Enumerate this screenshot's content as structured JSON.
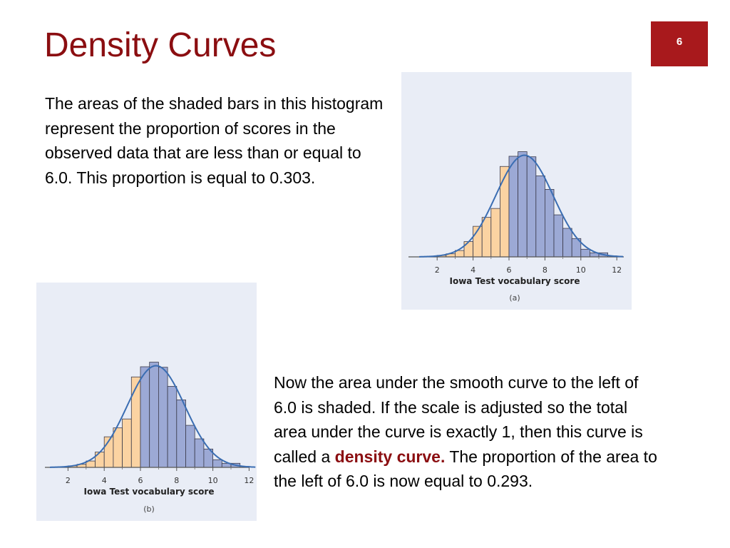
{
  "slide": {
    "title": "Density Curves",
    "page_number": "6"
  },
  "paragraph1": {
    "text": "The areas of the shaded bars in this histogram represent the proportion of scores in the observed data that are less than or equal to 6.0.  This proportion is equal to 0.303."
  },
  "paragraph2": {
    "text_before": "Now the area under the smooth curve to the left of 6.0 is shaded. If the scale is adjusted so the total area under the curve is exactly 1, then this curve is called a ",
    "term": "density curve.",
    "text_after": " The proportion of the area to the left of 6.0 is now equal to 0.293."
  },
  "colors": {
    "title": "#8b0e11",
    "page_box": "#a8191c",
    "bar_shaded": "#fbd3a2",
    "bar_unshaded": "#9ca9d5",
    "curve": "#3a6db2",
    "figure_bg": "#e9edf6"
  },
  "chart_data": [
    {
      "type": "bar",
      "panel_label": "(a)",
      "xlabel": "Iowa Test vocabulary score",
      "ylabel": "",
      "x_ticks": [
        2,
        4,
        6,
        8,
        10,
        12
      ],
      "xlim": [
        1,
        13
      ],
      "bin_width": 0.5,
      "bin_starts": [
        2.0,
        2.5,
        3.0,
        3.5,
        4.0,
        4.5,
        5.0,
        5.5,
        6.0,
        6.5,
        7.0,
        7.5,
        8.0,
        8.5,
        9.0,
        9.5,
        10.0,
        10.5,
        11.0,
        11.5
      ],
      "heights": [
        0.006,
        0.012,
        0.025,
        0.06,
        0.12,
        0.155,
        0.19,
        0.355,
        0.395,
        0.413,
        0.393,
        0.318,
        0.265,
        0.165,
        0.112,
        0.072,
        0.03,
        0.016,
        0.016,
        0.004
      ],
      "shaded_below": 6.0,
      "curve": {
        "mean": 6.86,
        "sd": 1.59,
        "peak": 0.399
      },
      "ylim": [
        0,
        0.42
      ]
    },
    {
      "type": "bar",
      "panel_label": "(b)",
      "xlabel": "Iowa Test vocabulary score",
      "ylabel": "",
      "x_ticks": [
        2,
        4,
        6,
        8,
        10,
        12
      ],
      "xlim": [
        1,
        13
      ],
      "bin_width": 0.5,
      "bin_starts": [
        2.0,
        2.5,
        3.0,
        3.5,
        4.0,
        4.5,
        5.0,
        5.5,
        6.0,
        6.5,
        7.0,
        7.5,
        8.0,
        8.5,
        9.0,
        9.5,
        10.0,
        10.5,
        11.0,
        11.5
      ],
      "heights": [
        0.006,
        0.012,
        0.025,
        0.06,
        0.12,
        0.155,
        0.19,
        0.355,
        0.395,
        0.413,
        0.393,
        0.318,
        0.265,
        0.165,
        0.112,
        0.072,
        0.03,
        0.016,
        0.016,
        0.004
      ],
      "shaded_below": 6.0,
      "curve": {
        "mean": 6.86,
        "sd": 1.59,
        "peak": 0.399
      },
      "ylim": [
        0,
        0.42
      ]
    }
  ]
}
